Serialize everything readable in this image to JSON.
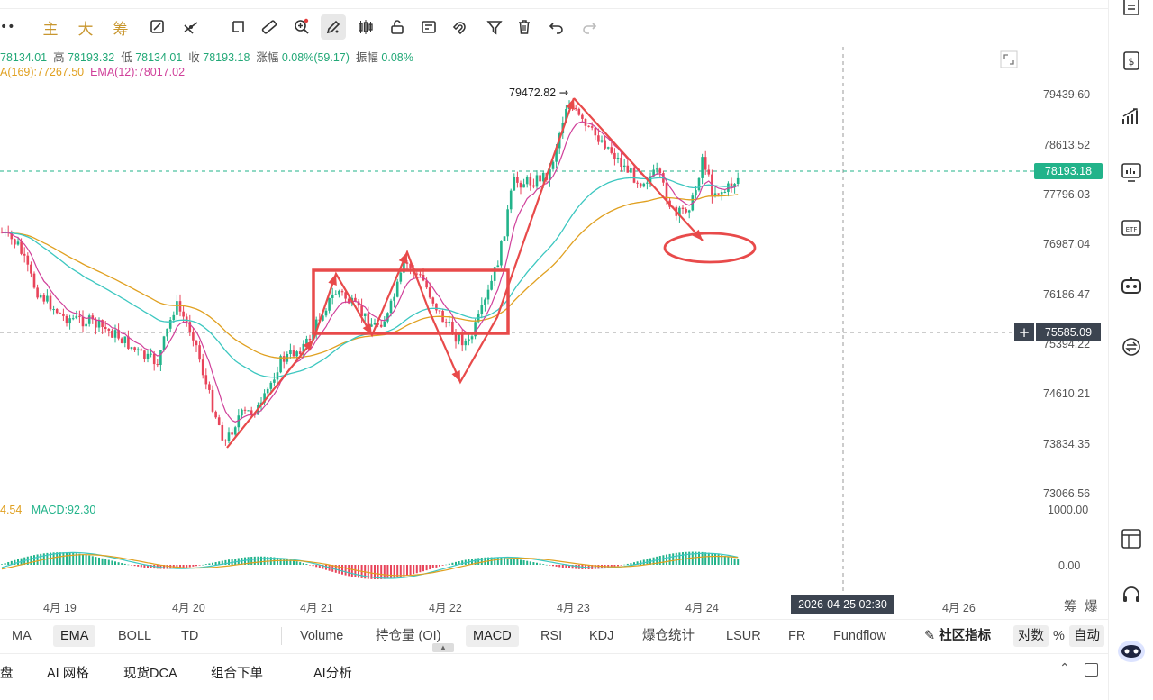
{
  "toolbar": {
    "items": [
      "主",
      "大",
      "筹"
    ]
  },
  "ohlc": {
    "open": "78134.01",
    "high_label": "高",
    "high": "78193.32",
    "low_label": "低",
    "low": "78134.01",
    "close_label": "收",
    "close": "78193.18",
    "chg_label": "涨幅",
    "chg": "0.08%(59.17)",
    "amp_label": "振幅",
    "amp": "0.08%"
  },
  "ema_legend": {
    "ema169": "A(169):77267.50",
    "ema12": "EMA(12):78017.02",
    "ema169_color": "#e0a020",
    "ema12_color": "#d0409a"
  },
  "macd_legend": {
    "left": "4.54",
    "macd": "MACD:92.30"
  },
  "price_axis": [
    "79439.60",
    "78613.52",
    "77796.03",
    "76987.04",
    "76186.47",
    "75394.22",
    "74610.21",
    "73834.35",
    "73066.56"
  ],
  "macd_axis": [
    "1000.00",
    "0.00"
  ],
  "current_price": "78193.18",
  "crosshair_price": "75585.09",
  "peak_label": "79472.82",
  "time_axis": [
    "4月 19",
    "4月 20",
    "4月 21",
    "4月 22",
    "4月 23",
    "4月 24",
    "4月 26"
  ],
  "crosshair_time": "2026-04-25 02:30",
  "axis_corner": [
    "筹",
    "爆"
  ],
  "indicators_main": [
    "MA",
    "EMA",
    "BOLL",
    "TD"
  ],
  "indicators_sub": [
    "Volume",
    "持仓量 (OI)",
    "MACD",
    "RSI",
    "KDJ",
    "爆仓统计",
    "LSUR",
    "FR",
    "Fundflow"
  ],
  "community": "社区指标",
  "scale": [
    "对数",
    "%",
    "自动"
  ],
  "bottom_tabs": [
    "盘",
    "AI 网格",
    "现货DCA",
    "组合下单",
    "AI分析"
  ],
  "colors": {
    "up": "#22b38a",
    "down": "#e8445a",
    "annotation": "#e84a4a",
    "ema_fast": "#d0409a",
    "ema_slow": "#e0a020",
    "ema_mid": "#3cc7c0"
  }
}
